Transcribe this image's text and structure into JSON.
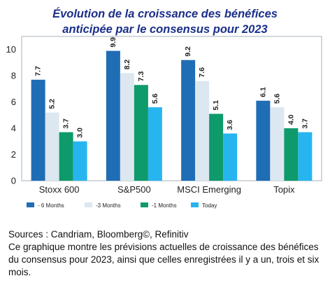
{
  "title_line1": "Évolution de la croissance des bénéfices",
  "title_line2": "anticipée par le consensus pour 2023",
  "chart_data": {
    "type": "bar",
    "categories": [
      "Stoxx 600",
      "S&P500",
      "MSCI Emerging",
      "Topix"
    ],
    "series": [
      {
        "name": "- 6 Months",
        "values": [
          7.7,
          9.9,
          9.2,
          6.1
        ],
        "color": "#1f6db5"
      },
      {
        "name": "-3 Months",
        "values": [
          5.2,
          8.2,
          7.6,
          5.6
        ],
        "color": "#dde7ef"
      },
      {
        "name": "-1 Months",
        "values": [
          3.7,
          7.3,
          5.1,
          4.0
        ],
        "color": "#0e9a6a"
      },
      {
        "name": "Today",
        "values": [
          3.0,
          5.6,
          3.6,
          3.7
        ],
        "color": "#27b5ef"
      }
    ],
    "ylim": [
      0,
      11
    ],
    "yticks": [
      0,
      2,
      4,
      6,
      8,
      10
    ],
    "data_labels": [
      "7.7",
      "5.2",
      "3.7",
      "3.0",
      "9.9",
      "8.2",
      "7.3",
      "5.6",
      "9.2",
      "7.6",
      "5.1",
      "3.6",
      "6.1",
      "5.6",
      "4.0",
      "3.7"
    ],
    "legend_position": "bottom",
    "grid": false
  },
  "caption": {
    "sources": "Sources : Candriam, Bloomberg©, Refinitiv",
    "description": "Ce graphique montre les prévisions actuelles de croissance des bénéfices du consensus pour 2023, ainsi que celles enregistrées il y a un, trois et six mois."
  }
}
